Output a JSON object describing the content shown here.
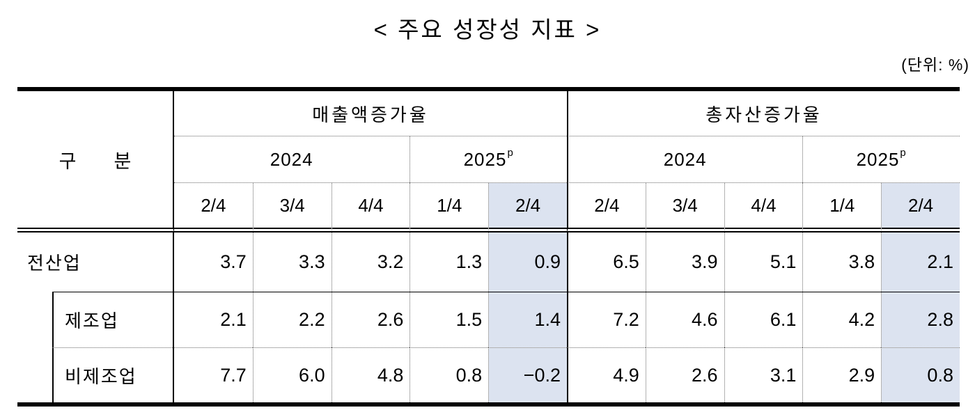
{
  "title": "< 주요 성장성 지표 >",
  "unit_note": "(단위: %)",
  "table": {
    "corner_label": "구　　분",
    "groups": [
      {
        "label": "매출액증가율"
      },
      {
        "label": "총자산증가율"
      }
    ],
    "years": [
      {
        "label": "2024",
        "sup": ""
      },
      {
        "label": "2025",
        "sup": "p"
      },
      {
        "label": "2024",
        "sup": ""
      },
      {
        "label": "2025",
        "sup": "p"
      }
    ],
    "quarters": [
      "2/4",
      "3/4",
      "4/4",
      "1/4",
      "2/4",
      "2/4",
      "3/4",
      "4/4",
      "1/4",
      "2/4"
    ],
    "rows": [
      {
        "label": "전산업",
        "values": [
          "3.7",
          "3.3",
          "3.2",
          "1.3",
          "0.9",
          "6.5",
          "3.9",
          "5.1",
          "3.8",
          "2.1"
        ]
      },
      {
        "label": "제조업",
        "values": [
          "2.1",
          "2.2",
          "2.6",
          "1.5",
          "1.4",
          "7.2",
          "4.6",
          "6.1",
          "4.2",
          "2.8"
        ]
      },
      {
        "label": "비제조업",
        "values": [
          "7.7",
          "6.0",
          "4.8",
          "0.8",
          "−0.2",
          "4.9",
          "2.6",
          "3.1",
          "2.9",
          "0.8"
        ]
      }
    ],
    "highlight_color": "#dce3f0"
  }
}
